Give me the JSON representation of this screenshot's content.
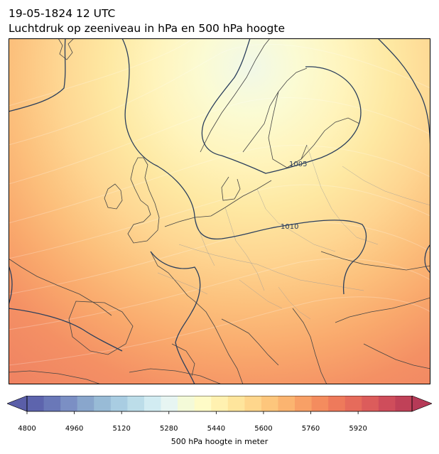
{
  "title": {
    "line1": "19-05-1824 12 UTC",
    "line2": "Luchtdruk op zeeniveau in hPa en 500 hPa hoogte"
  },
  "map": {
    "isobar_labels": [
      "1005",
      "1010"
    ],
    "isobar_color": "#2b3f5c",
    "field": "500 hPa hoogte",
    "colormap": "RdYlBu_r",
    "coastline_color": "#444444"
  },
  "colorbar": {
    "title": "500 hPa hoogte in meter",
    "ticks": [
      "4800",
      "4960",
      "5120",
      "5280",
      "5440",
      "5600",
      "5760",
      "5920"
    ],
    "colors": [
      "#5d64ad",
      "#6a78b8",
      "#7b8fc4",
      "#89a6cc",
      "#98bbd6",
      "#a9cde2",
      "#bcdde9",
      "#d2ecf2",
      "#e7f5f2",
      "#f4fad8",
      "#fefbc7",
      "#fff1b0",
      "#fee59c",
      "#fed68c",
      "#fdc67c",
      "#fbb470",
      "#f8a066",
      "#f48c5e",
      "#ee7a5b",
      "#e66b5b",
      "#dc5c5b",
      "#cf4d5b",
      "#c04158"
    ],
    "under_color": "#5a5ea8",
    "over_color": "#b63a57"
  }
}
